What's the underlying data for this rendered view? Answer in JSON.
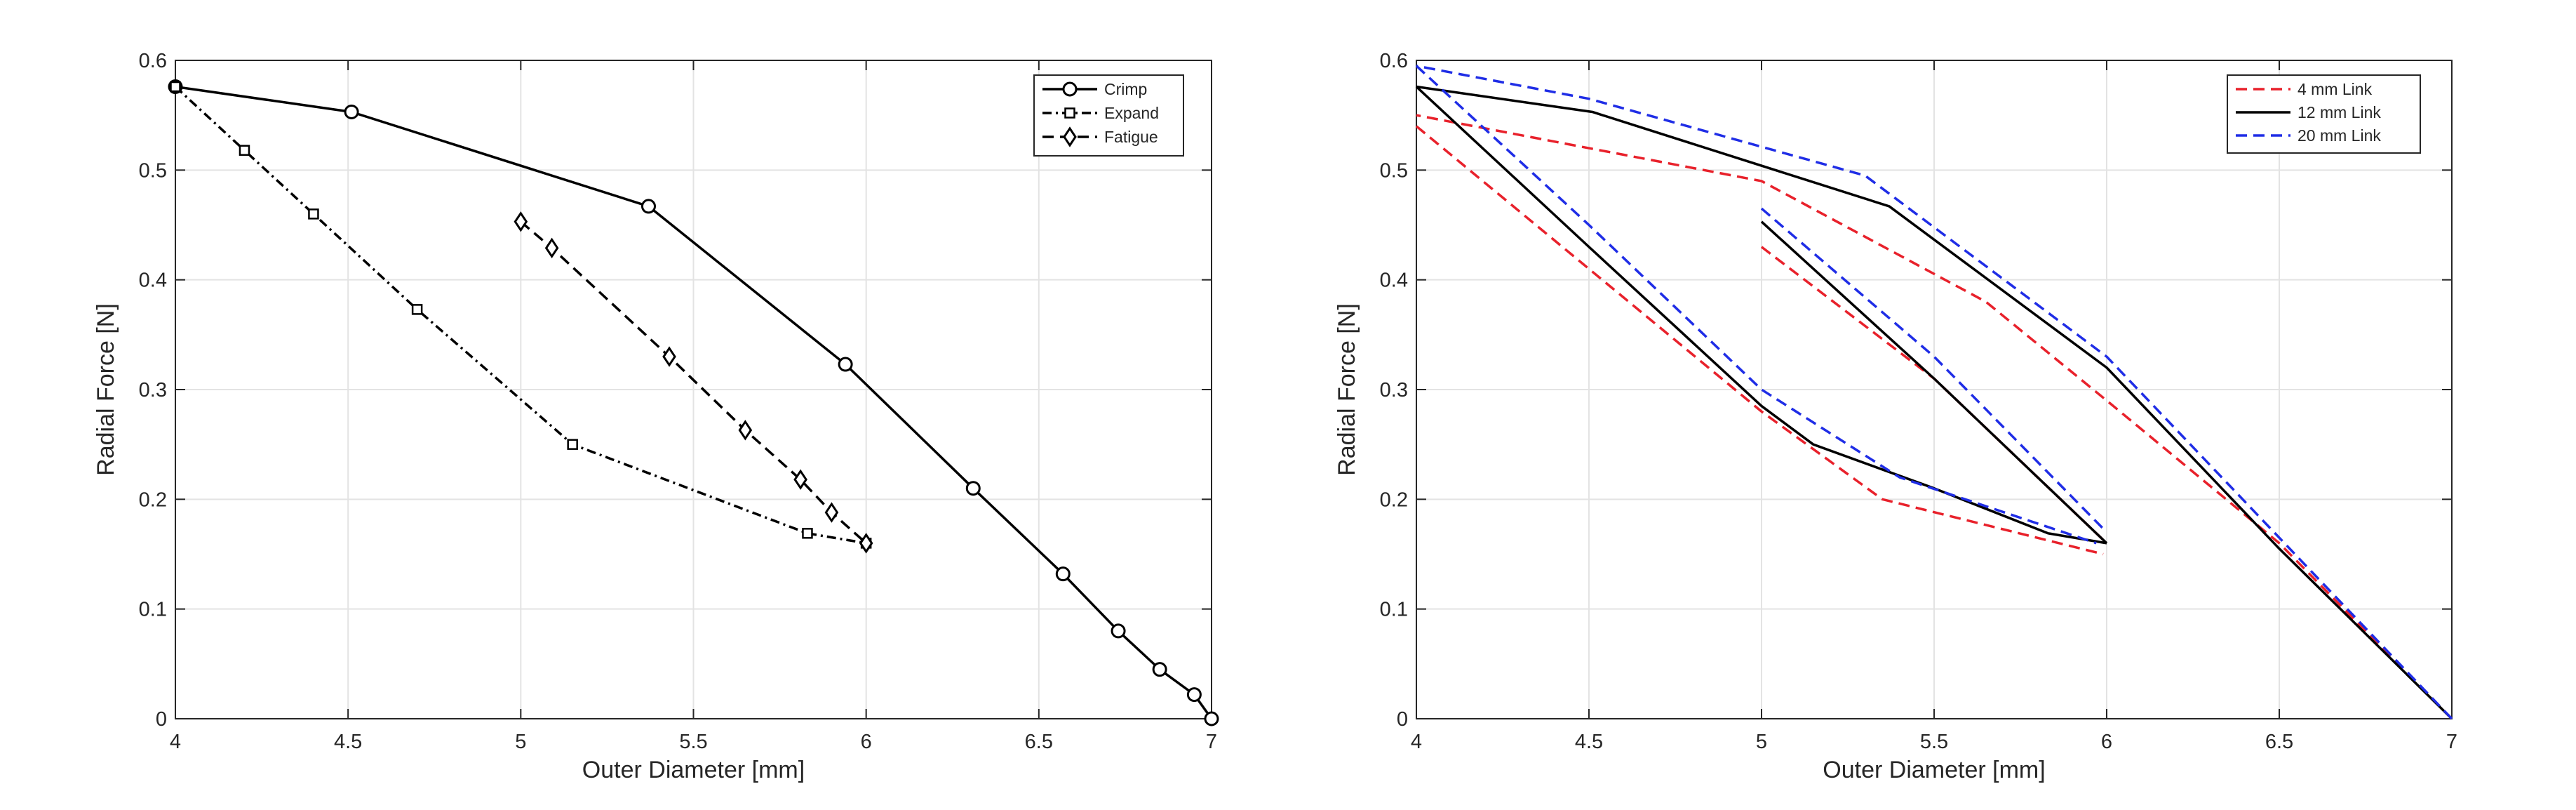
{
  "chart_data": [
    {
      "type": "line",
      "title": "",
      "xlabel": "Outer Diameter [mm]",
      "ylabel": "Radial Force [N]",
      "xlim": [
        4,
        7
      ],
      "ylim": [
        0,
        0.6
      ],
      "xticks": [
        4,
        4.5,
        5,
        5.5,
        6,
        6.5,
        7
      ],
      "yticks": [
        0,
        0.1,
        0.2,
        0.3,
        0.4,
        0.5,
        0.6
      ],
      "xtick_labels": [
        "4",
        "4.5",
        "5",
        "5.5",
        "6",
        "6.5",
        "7"
      ],
      "ytick_labels": [
        "0",
        "0.1",
        "0.2",
        "0.3",
        "0.4",
        "0.5",
        "0.6"
      ],
      "grid": true,
      "legend_position": "top-right",
      "series": [
        {
          "name": "Crimp",
          "color": "#000000",
          "style": "solid",
          "marker": "circle",
          "x": [
            7.0,
            6.95,
            6.85,
            6.73,
            6.57,
            6.31,
            5.94,
            5.37,
            4.51,
            4.0
          ],
          "y": [
            0.0,
            0.022,
            0.045,
            0.08,
            0.132,
            0.21,
            0.323,
            0.467,
            0.553,
            0.576
          ]
        },
        {
          "name": "Expand",
          "color": "#000000",
          "style": "dashdot",
          "marker": "square",
          "x": [
            4.0,
            4.2,
            4.4,
            4.7,
            5.15,
            5.83,
            6.0
          ],
          "y": [
            0.576,
            0.518,
            0.46,
            0.373,
            0.25,
            0.169,
            0.16
          ]
        },
        {
          "name": "Fatigue",
          "color": "#000000",
          "style": "dashed",
          "marker": "diamond",
          "x": [
            5.0,
            5.09,
            5.43,
            5.65,
            5.81,
            5.9,
            6.0
          ],
          "y": [
            0.453,
            0.429,
            0.33,
            0.263,
            0.218,
            0.188,
            0.16
          ]
        }
      ]
    },
    {
      "type": "line",
      "title": "",
      "xlabel": "Outer Diameter [mm]",
      "ylabel": "Radial Force [N]",
      "xlim": [
        4,
        7
      ],
      "ylim": [
        0,
        0.6
      ],
      "xticks": [
        4,
        4.5,
        5,
        5.5,
        6,
        6.5,
        7
      ],
      "yticks": [
        0,
        0.1,
        0.2,
        0.3,
        0.4,
        0.5,
        0.6
      ],
      "xtick_labels": [
        "4",
        "4.5",
        "5",
        "5.5",
        "6",
        "6.5",
        "7"
      ],
      "ytick_labels": [
        "0",
        "0.1",
        "0.2",
        "0.3",
        "0.4",
        "0.5",
        "0.6"
      ],
      "grid": true,
      "legend_position": "top-right",
      "series": [
        {
          "name": "4 mm Link",
          "color": "#e8212b",
          "style": "dashed",
          "segments": [
            {
              "x": [
                7.0,
                6.5,
                6.0,
                5.65,
                5.0,
                4.0
              ],
              "y": [
                0.0,
                0.16,
                0.29,
                0.38,
                0.49,
                0.55
              ]
            },
            {
              "x": [
                4.0,
                4.5,
                5.0,
                5.35,
                5.99
              ],
              "y": [
                0.54,
                0.41,
                0.28,
                0.2,
                0.15
              ]
            },
            {
              "x": [
                5.0,
                5.5,
                6.0
              ],
              "y": [
                0.43,
                0.31,
                0.16
              ]
            }
          ]
        },
        {
          "name": "12 mm Link",
          "color": "#000000",
          "style": "solid",
          "segments": [
            {
              "x": [
                7.0,
                6.5,
                6.0,
                5.37,
                4.51,
                4.0
              ],
              "y": [
                0.0,
                0.155,
                0.32,
                0.467,
                0.553,
                0.576
              ]
            },
            {
              "x": [
                4.0,
                4.5,
                5.0,
                5.15,
                5.5,
                5.83,
                6.0
              ],
              "y": [
                0.576,
                0.43,
                0.285,
                0.25,
                0.21,
                0.169,
                0.16
              ]
            },
            {
              "x": [
                5.0,
                5.5,
                6.0
              ],
              "y": [
                0.453,
                0.31,
                0.16
              ]
            }
          ]
        },
        {
          "name": "20 mm Link",
          "color": "#1f2de6",
          "style": "dashed",
          "segments": [
            {
              "x": [
                7.0,
                6.5,
                6.0,
                5.3,
                4.5,
                4.0
              ],
              "y": [
                0.0,
                0.165,
                0.33,
                0.495,
                0.565,
                0.595
              ]
            },
            {
              "x": [
                4.0,
                4.5,
                5.0,
                5.4,
                5.97
              ],
              "y": [
                0.595,
                0.45,
                0.3,
                0.22,
                0.16
              ]
            },
            {
              "x": [
                5.0,
                5.5,
                6.0
              ],
              "y": [
                0.465,
                0.33,
                0.17
              ]
            }
          ]
        }
      ]
    }
  ]
}
